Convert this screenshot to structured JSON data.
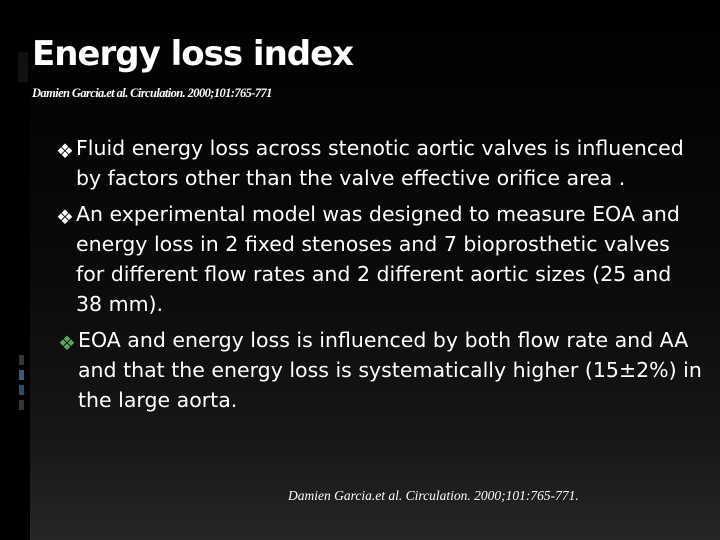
{
  "slide": {
    "title": "Energy loss index",
    "subtitle": "Damien Garcia.et al. Circulation. 2000;101:765-771",
    "bullet_icon": "diamond-bullet-icon",
    "bullets": [
      "Fluid energy loss across stenotic aortic valves is influenced by factors other than the valve effective orifice area .",
      "An experimental model was designed to measure EOA and energy loss in 2 fixed stenoses and 7 bioprosthetic valves for different flow rates and 2 different aortic sizes (25 and 38 mm).",
      "EOA and energy loss is influenced by both flow rate and AA  and that the energy loss is systematically higher (15±2%) in the large aorta."
    ],
    "footer": "Damien Garcia.et al. Circulation. 2000;101:765-771."
  },
  "colors": {
    "background": "#000000",
    "text": "#ffffff",
    "bullet_accent": "#5ba65b"
  }
}
